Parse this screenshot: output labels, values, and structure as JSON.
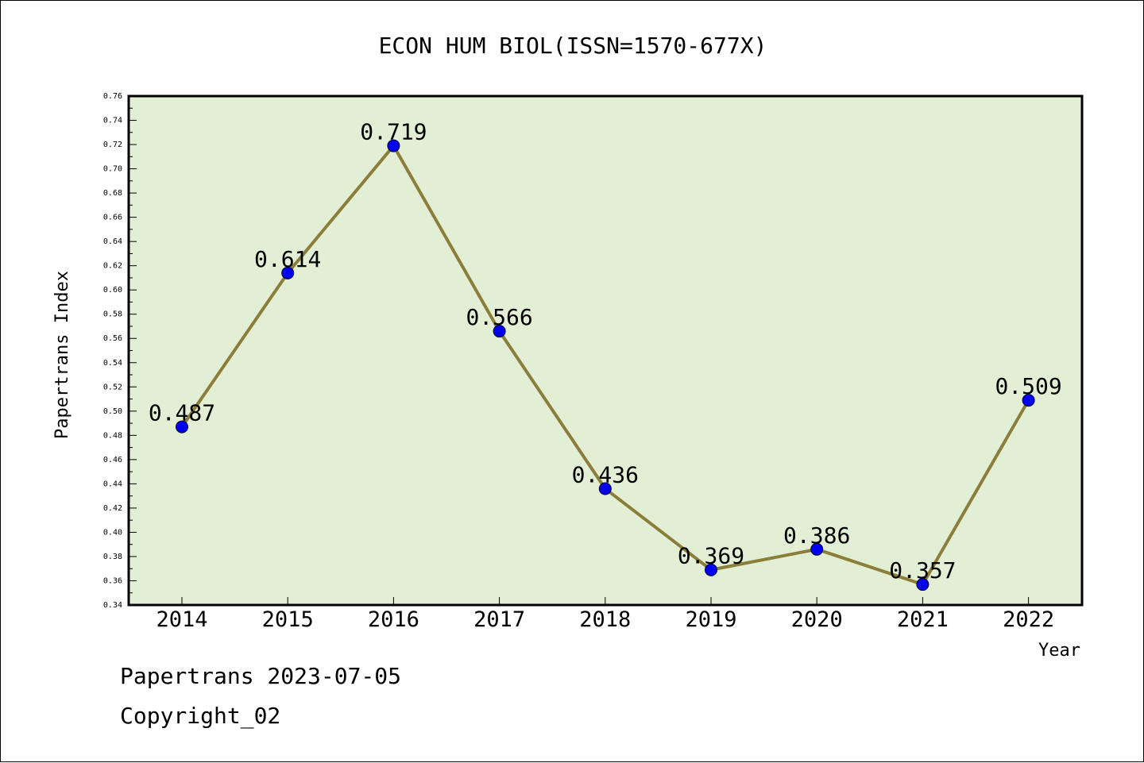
{
  "chart_data": {
    "type": "line",
    "title": "ECON HUM BIOL(ISSN=1570-677X)",
    "xlabel": "Year",
    "ylabel": "Papertrans Index",
    "categories": [
      "2014",
      "2015",
      "2016",
      "2017",
      "2018",
      "2019",
      "2020",
      "2021",
      "2022"
    ],
    "series": [
      {
        "values": [
          0.487,
          0.614,
          0.719,
          0.566,
          0.436,
          0.369,
          0.386,
          0.357,
          0.509
        ],
        "labels": [
          "0.487",
          "0.614",
          "0.719",
          "0.566",
          "0.436",
          "0.369",
          "0.386",
          "0.357",
          "0.509"
        ]
      }
    ],
    "ylim": [
      0.34,
      0.76
    ],
    "yticks": [
      "0.34",
      "0.36",
      "0.38",
      "0.40",
      "0.42",
      "0.44",
      "0.46",
      "0.48",
      "0.50",
      "0.52",
      "0.54",
      "0.56",
      "0.58",
      "0.60",
      "0.62",
      "0.64",
      "0.66",
      "0.68",
      "0.70",
      "0.72",
      "0.74",
      "0.76"
    ],
    "grid": false,
    "colors": {
      "plot_background": "#e2efd5",
      "line": "#8b7d3a",
      "marker": "#0000ee"
    }
  },
  "footer": {
    "line1": "Papertrans 2023-07-05",
    "line2": "Copyright_02"
  }
}
